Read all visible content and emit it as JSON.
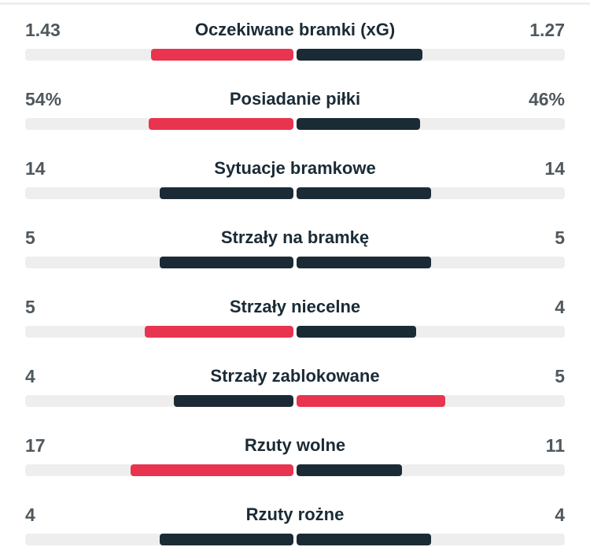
{
  "colors": {
    "leader": "#e8344f",
    "default": "#1b2b36",
    "track": "#eeeeee"
  },
  "stats": [
    {
      "label": "Oczekiwane bramki (xG)",
      "home": "1.43",
      "away": "1.27",
      "home_value": 1.43,
      "away_value": 1.27
    },
    {
      "label": "Posiadanie piłki",
      "home": "54%",
      "away": "46%",
      "home_value": 54,
      "away_value": 46
    },
    {
      "label": "Sytuacje bramkowe",
      "home": "14",
      "away": "14",
      "home_value": 14,
      "away_value": 14
    },
    {
      "label": "Strzały na bramkę",
      "home": "5",
      "away": "5",
      "home_value": 5,
      "away_value": 5
    },
    {
      "label": "Strzały niecelne",
      "home": "5",
      "away": "4",
      "home_value": 5,
      "away_value": 4
    },
    {
      "label": "Strzały zablokowane",
      "home": "4",
      "away": "5",
      "home_value": 4,
      "away_value": 5
    },
    {
      "label": "Rzuty wolne",
      "home": "17",
      "away": "11",
      "home_value": 17,
      "away_value": 11
    },
    {
      "label": "Rzuty rożne",
      "home": "4",
      "away": "4",
      "home_value": 4,
      "away_value": 4
    }
  ]
}
